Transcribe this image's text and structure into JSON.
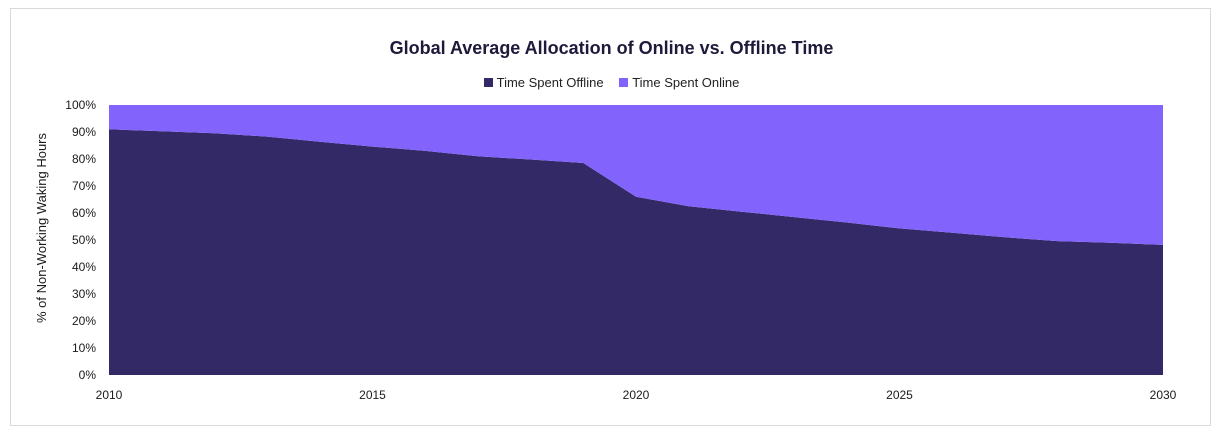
{
  "chart_data": {
    "type": "area",
    "stacked": true,
    "title": "Global Average Allocation of Online vs. Offline Time",
    "ylabel": "% of Non-Working Waking Hours",
    "xlabel": "",
    "xlim": [
      2010,
      2030
    ],
    "ylim": [
      0,
      100
    ],
    "x_ticks": [
      "2010",
      "2015",
      "2020",
      "2025",
      "2030"
    ],
    "y_ticks": [
      "0%",
      "10%",
      "20%",
      "30%",
      "40%",
      "50%",
      "60%",
      "70%",
      "80%",
      "90%",
      "100%"
    ],
    "legend_position": "top-center",
    "x": [
      2010,
      2011,
      2012,
      2013,
      2014,
      2015,
      2016,
      2017,
      2018,
      2019,
      2020,
      2021,
      2022,
      2023,
      2024,
      2025,
      2026,
      2027,
      2028,
      2029,
      2030
    ],
    "series": [
      {
        "name": "Time Spent Offline",
        "color": "#322966",
        "values": [
          91,
          90.3,
          89.5,
          88.3,
          86.4,
          84.6,
          83.0,
          81.0,
          79.8,
          78.5,
          66,
          62.5,
          60.5,
          58.5,
          56.5,
          54.3,
          52.7,
          51.0,
          49.6,
          49.0,
          48.2
        ]
      },
      {
        "name": "Time Spent Online",
        "color": "#8264fc",
        "values": [
          9,
          9.7,
          10.5,
          11.7,
          13.6,
          15.4,
          17.0,
          19.0,
          20.2,
          21.5,
          34,
          37.5,
          39.5,
          41.5,
          43.5,
          45.7,
          47.3,
          49.0,
          50.4,
          51.0,
          51.8
        ]
      }
    ]
  }
}
